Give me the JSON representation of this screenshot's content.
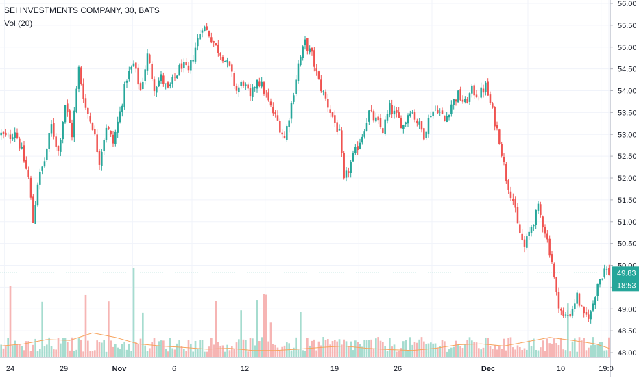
{
  "header": {
    "title": "SEI INVESTMENTS COMPANY, 30, BATS",
    "volume_indicator": "Vol (20)"
  },
  "price_axis": {
    "labels": [
      "56.00",
      "55.50",
      "55.00",
      "54.50",
      "54.00",
      "53.50",
      "53.00",
      "52.50",
      "52.00",
      "51.50",
      "51.00",
      "50.50",
      "50.00",
      "49.50",
      "49.00",
      "48.50",
      "48.00"
    ],
    "current_price": "49.83",
    "countdown": "18:53",
    "current_price_color": "#26a69a"
  },
  "time_axis": {
    "labels": [
      "24",
      "29",
      "Nov",
      "6",
      "12",
      "19",
      "26",
      "Dec",
      "10",
      "19:0"
    ]
  },
  "colors": {
    "up": "#26a69a",
    "down": "#ef5350",
    "volume_up": "#a6dccf",
    "volume_down": "#f6b5b4",
    "volume_ma": "#f7a35c",
    "grid": "#f0f3fa"
  },
  "chart_data": {
    "type": "candlestick",
    "title": "SEI INVESTMENTS COMPANY, 30, BATS",
    "interval": "30",
    "exchange": "BATS",
    "ylim": [
      48.0,
      56.0
    ],
    "y_ticks": [
      56.0,
      55.5,
      55.0,
      54.5,
      54.0,
      53.5,
      53.0,
      52.5,
      52.0,
      51.5,
      51.0,
      50.5,
      50.0,
      49.5,
      49.0,
      48.5,
      48.0
    ],
    "x_tick_labels": [
      "24",
      "29",
      "Nov",
      "6",
      "12",
      "19",
      "26",
      "Dec",
      "10",
      "19:0"
    ],
    "last_price": 49.83,
    "grid": true,
    "close_path": [
      [
        0,
        53.0
      ],
      [
        3,
        52.9
      ],
      [
        6,
        53.1
      ],
      [
        9,
        52.6
      ],
      [
        12,
        52.0
      ],
      [
        14,
        51.0
      ],
      [
        16,
        51.9
      ],
      [
        19,
        52.4
      ],
      [
        22,
        53.2
      ],
      [
        25,
        52.6
      ],
      [
        28,
        53.7
      ],
      [
        31,
        53.0
      ],
      [
        34,
        54.5
      ],
      [
        37,
        53.6
      ],
      [
        40,
        53.2
      ],
      [
        43,
        52.4
      ],
      [
        46,
        53.2
      ],
      [
        49,
        52.8
      ],
      [
        52,
        53.5
      ],
      [
        55,
        54.3
      ],
      [
        58,
        54.6
      ],
      [
        61,
        54.0
      ],
      [
        64,
        54.8
      ],
      [
        67,
        54.1
      ],
      [
        70,
        54.3
      ],
      [
        73,
        54.0
      ],
      [
        76,
        54.3
      ],
      [
        79,
        54.6
      ],
      [
        82,
        54.4
      ],
      [
        85,
        55.0
      ],
      [
        88,
        55.5
      ],
      [
        91,
        55.3
      ],
      [
        94,
        55.0
      ],
      [
        97,
        54.8
      ],
      [
        100,
        54.5
      ],
      [
        103,
        54.0
      ],
      [
        106,
        54.2
      ],
      [
        109,
        53.8
      ],
      [
        112,
        54.3
      ],
      [
        115,
        54.0
      ],
      [
        118,
        53.6
      ],
      [
        121,
        53.3
      ],
      [
        124,
        52.9
      ],
      [
        127,
        53.7
      ],
      [
        130,
        54.6
      ],
      [
        133,
        55.1
      ],
      [
        136,
        54.8
      ],
      [
        139,
        54.2
      ],
      [
        142,
        53.8
      ],
      [
        145,
        53.4
      ],
      [
        148,
        53.0
      ],
      [
        150,
        51.9
      ],
      [
        152,
        52.2
      ],
      [
        155,
        52.6
      ],
      [
        158,
        53.0
      ],
      [
        161,
        53.5
      ],
      [
        164,
        53.3
      ],
      [
        167,
        53.1
      ],
      [
        170,
        53.6
      ],
      [
        173,
        53.4
      ],
      [
        176,
        53.2
      ],
      [
        179,
        53.6
      ],
      [
        182,
        53.3
      ],
      [
        185,
        53.0
      ],
      [
        188,
        53.5
      ],
      [
        191,
        53.6
      ],
      [
        194,
        53.3
      ],
      [
        197,
        53.7
      ],
      [
        200,
        53.9
      ],
      [
        203,
        53.7
      ],
      [
        206,
        54.0
      ],
      [
        209,
        53.9
      ],
      [
        212,
        54.1
      ],
      [
        215,
        53.5
      ],
      [
        218,
        52.9
      ],
      [
        221,
        52.0
      ],
      [
        224,
        51.5
      ],
      [
        226,
        50.9
      ],
      [
        229,
        50.4
      ],
      [
        232,
        50.9
      ],
      [
        235,
        51.3
      ],
      [
        238,
        50.8
      ],
      [
        241,
        50.1
      ],
      [
        243,
        49.3
      ],
      [
        246,
        48.8
      ],
      [
        249,
        48.9
      ],
      [
        252,
        49.3
      ],
      [
        255,
        48.8
      ],
      [
        258,
        48.9
      ],
      [
        261,
        49.6
      ],
      [
        264,
        49.9
      ],
      [
        266,
        49.83
      ]
    ],
    "volume_ma": [
      [
        0,
        48.15
      ],
      [
        10,
        48.2
      ],
      [
        20,
        48.3
      ],
      [
        30,
        48.28
      ],
      [
        40,
        48.45
      ],
      [
        50,
        48.35
      ],
      [
        60,
        48.2
      ],
      [
        70,
        48.15
      ],
      [
        80,
        48.12
      ],
      [
        90,
        48.08
      ],
      [
        100,
        48.1
      ],
      [
        110,
        48.05
      ],
      [
        120,
        48.05
      ],
      [
        130,
        48.08
      ],
      [
        140,
        48.12
      ],
      [
        150,
        48.15
      ],
      [
        160,
        48.1
      ],
      [
        170,
        48.07
      ],
      [
        180,
        48.05
      ],
      [
        190,
        48.1
      ],
      [
        200,
        48.18
      ],
      [
        210,
        48.2
      ],
      [
        220,
        48.15
      ],
      [
        230,
        48.25
      ],
      [
        240,
        48.35
      ],
      [
        250,
        48.28
      ],
      [
        260,
        48.2
      ],
      [
        266,
        48.1
      ]
    ]
  }
}
